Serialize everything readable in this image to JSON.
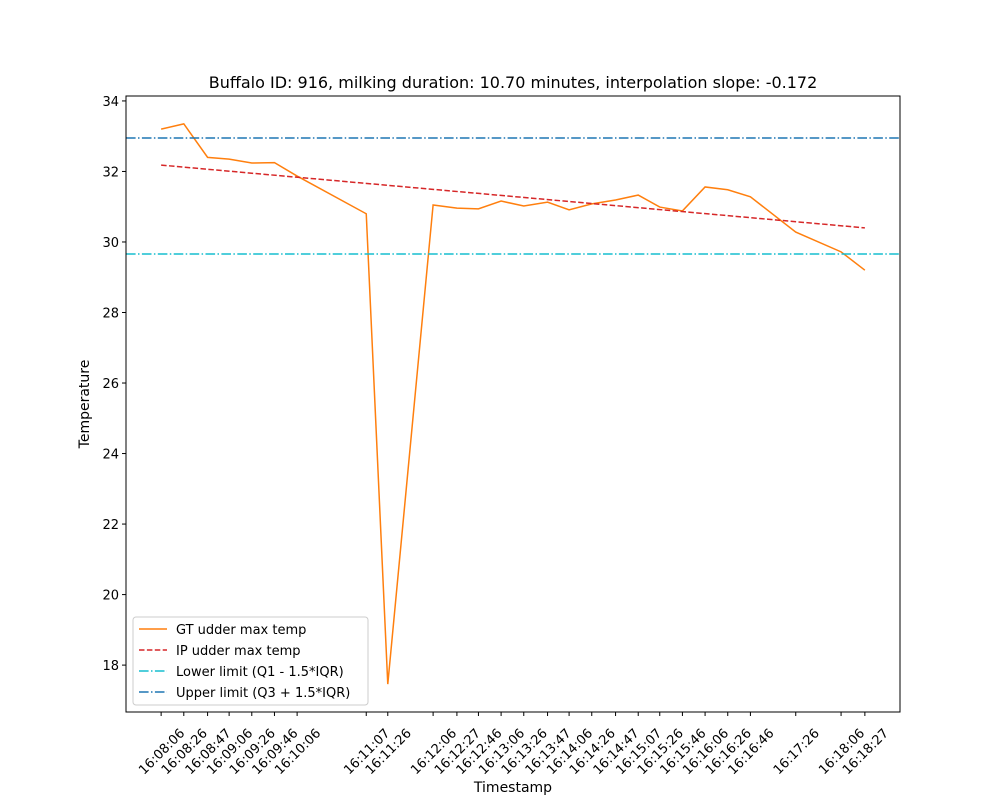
{
  "chart_data": {
    "type": "line",
    "title": "Buffalo ID: 916, milking duration: 10.70 minutes, interpolation slope: -0.172",
    "x_label": "Timestamp",
    "y_label": "Temperature",
    "x": [
      "16:08:06",
      "16:08:26",
      "16:08:47",
      "16:09:06",
      "16:09:26",
      "16:09:46",
      "16:10:06",
      "16:11:07",
      "16:11:26",
      "16:12:06",
      "16:12:27",
      "16:12:46",
      "16:13:06",
      "16:13:26",
      "16:13:47",
      "16:14:06",
      "16:14:26",
      "16:14:47",
      "16:15:07",
      "16:15:26",
      "16:15:46",
      "16:16:06",
      "16:16:26",
      "16:16:46",
      "16:17:26",
      "16:18:06",
      "16:18:27"
    ],
    "xticks": [
      "16:08:06",
      "16:08:26",
      "16:08:47",
      "16:09:06",
      "16:09:26",
      "16:09:46",
      "16:10:06",
      "16:11:07",
      "16:11:26",
      "16:12:06",
      "16:12:27",
      "16:12:46",
      "16:13:06",
      "16:13:26",
      "16:13:47",
      "16:14:06",
      "16:14:26",
      "16:14:47",
      "16:15:07",
      "16:15:26",
      "16:15:46",
      "16:16:06",
      "16:16:26",
      "16:16:46",
      "16:17:26",
      "16:18:06",
      "16:18:27"
    ],
    "xlim": [
      "16:07:35",
      "16:18:58"
    ],
    "ylim": [
      16.67,
      34.14
    ],
    "yticks": [
      18,
      20,
      22,
      24,
      26,
      28,
      30,
      32,
      34
    ],
    "grid": false,
    "legend": "lower left",
    "series": [
      {
        "name": "GT udder max temp",
        "color": "#ff7f0e",
        "style": "solid",
        "values": [
          33.2,
          33.35,
          32.4,
          32.35,
          32.24,
          32.25,
          31.87,
          30.8,
          17.46,
          31.05,
          30.96,
          30.94,
          31.16,
          31.02,
          31.13,
          30.91,
          31.08,
          31.19,
          31.33,
          30.99,
          30.88,
          31.56,
          31.48,
          31.28,
          30.28,
          29.72,
          29.2
        ]
      },
      {
        "name": "IP udder max temp",
        "color": "#d62728",
        "style": "dashed",
        "x": [
          "16:08:06",
          "16:18:27"
        ],
        "values": [
          32.18,
          30.4
        ]
      }
    ],
    "hlines": [
      {
        "name": "Lower limit (Q1 - 1.5*IQR)",
        "color": "#17becf",
        "style": "dashdot",
        "value": 29.66
      },
      {
        "name": "Upper limit (Q3 + 1.5*IQR)",
        "color": "#1f77b4",
        "style": "dashdot",
        "value": 32.95
      }
    ]
  }
}
